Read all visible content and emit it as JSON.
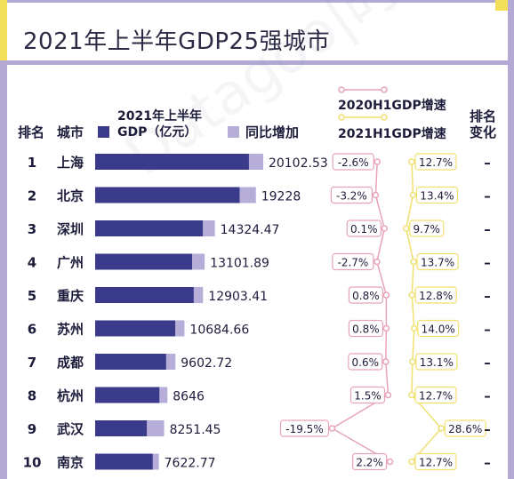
{
  "title": "2021年上半年GDP25强城市",
  "watermark": "Datagoo|时代数据",
  "headers": {
    "rank": "排名",
    "city": "城市",
    "gdp_line1": "2021年上半年",
    "gdp_line2": "GDP（亿元）",
    "increase": "同比增加",
    "growth_2020": "2020H1GDP增速",
    "growth_2021": "2021H1GDP增速",
    "rank_change_line1": "排名",
    "rank_change_line2": "变化"
  },
  "colors": {
    "gdp_bar": "#3b3b8c",
    "increase_bar": "#b6aed8",
    "line_2020": "#e8a3bb",
    "line_2021": "#f0e070",
    "frame": "#b3a9d4",
    "accent": "#f2df5a"
  },
  "chart_data": {
    "type": "bar",
    "title": "2021年上半年GDP25强城市",
    "categories": [
      "上海",
      "北京",
      "深圳",
      "广州",
      "重庆",
      "苏州",
      "成都",
      "杭州",
      "武汉",
      "南京"
    ],
    "ranks": [
      1,
      2,
      3,
      4,
      5,
      6,
      7,
      8,
      9,
      10
    ],
    "gdp_total": [
      "20102.53",
      "19228",
      "14324.47",
      "13101.89",
      "12903.41",
      "10684.66",
      "9602.72",
      "8646",
      "8251.45",
      "7622.77"
    ],
    "series": [
      {
        "name": "GDP（亿元）",
        "values": [
          18400,
          17300,
          12900,
          11600,
          11800,
          9600,
          8500,
          7700,
          6200,
          6900
        ]
      },
      {
        "name": "同比增加",
        "values": [
          1702.53,
          1928,
          1424.47,
          1501.89,
          1103.41,
          1084.66,
          1102.72,
          946,
          2051.45,
          722.77
        ]
      }
    ],
    "growth_2020": [
      -2.6,
      -3.2,
      0.1,
      -2.7,
      0.8,
      0.8,
      0.6,
      1.5,
      -19.5,
      2.2
    ],
    "growth_2021": [
      12.7,
      13.4,
      9.7,
      13.7,
      12.8,
      14.0,
      13.1,
      12.7,
      28.6,
      12.7
    ],
    "growth_2020_labels": [
      "-2.6%",
      "-3.2%",
      "0.1%",
      "-2.7%",
      "0.8%",
      "0.8%",
      "0.6%",
      "1.5%",
      "-19.5%",
      "2.2%"
    ],
    "growth_2021_labels": [
      "12.7%",
      "13.4%",
      "9.7%",
      "13.7%",
      "12.8%",
      "14.0%",
      "13.1%",
      "12.7%",
      "28.6%",
      "12.7%"
    ],
    "rank_change": [
      "–",
      "–",
      "–",
      "–",
      "–",
      "–",
      "–",
      "–",
      "–",
      "–"
    ]
  }
}
